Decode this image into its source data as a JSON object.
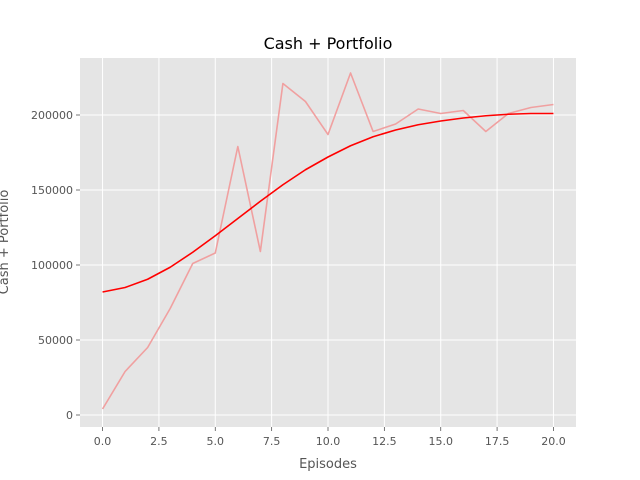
{
  "chart_data": {
    "type": "line",
    "title": "Cash + Portfolio",
    "xlabel": "Episodes",
    "ylabel": "Cash + Portfolio",
    "xlim": [
      -1,
      21
    ],
    "ylim": [
      -8000,
      238000
    ],
    "x_ticks": [
      0,
      2.5,
      5,
      7.5,
      10,
      12.5,
      15,
      17.5,
      20
    ],
    "x_tick_labels": [
      "0.0",
      "2.5",
      "5.0",
      "7.5",
      "10.0",
      "12.5",
      "15.0",
      "17.5",
      "20.0"
    ],
    "y_ticks": [
      0,
      50000,
      100000,
      150000,
      200000
    ],
    "y_tick_labels": [
      "0",
      "50000",
      "100000",
      "150000",
      "200000"
    ],
    "grid": true,
    "background": "#e5e5e5",
    "x": [
      0,
      1,
      2,
      3,
      4,
      5,
      6,
      7,
      8,
      9,
      10,
      11,
      12,
      13,
      14,
      15,
      16,
      17,
      18,
      19,
      20
    ],
    "series": [
      {
        "color": "#f0a0a0",
        "values": [
          4000,
          29000,
          45000,
          71000,
          101000,
          108000,
          179000,
          109000,
          221000,
          209000,
          187000,
          228000,
          189000,
          194000,
          204000,
          201000,
          203000,
          189000,
          201000,
          205000,
          207000
        ]
      },
      {
        "color": "#ff0000",
        "values": [
          82000,
          85000,
          90500,
          98500,
          108500,
          119500,
          131000,
          142500,
          153500,
          163500,
          172000,
          179500,
          185500,
          190000,
          193500,
          196000,
          198000,
          199500,
          200500,
          201000,
          201000
        ]
      }
    ]
  }
}
